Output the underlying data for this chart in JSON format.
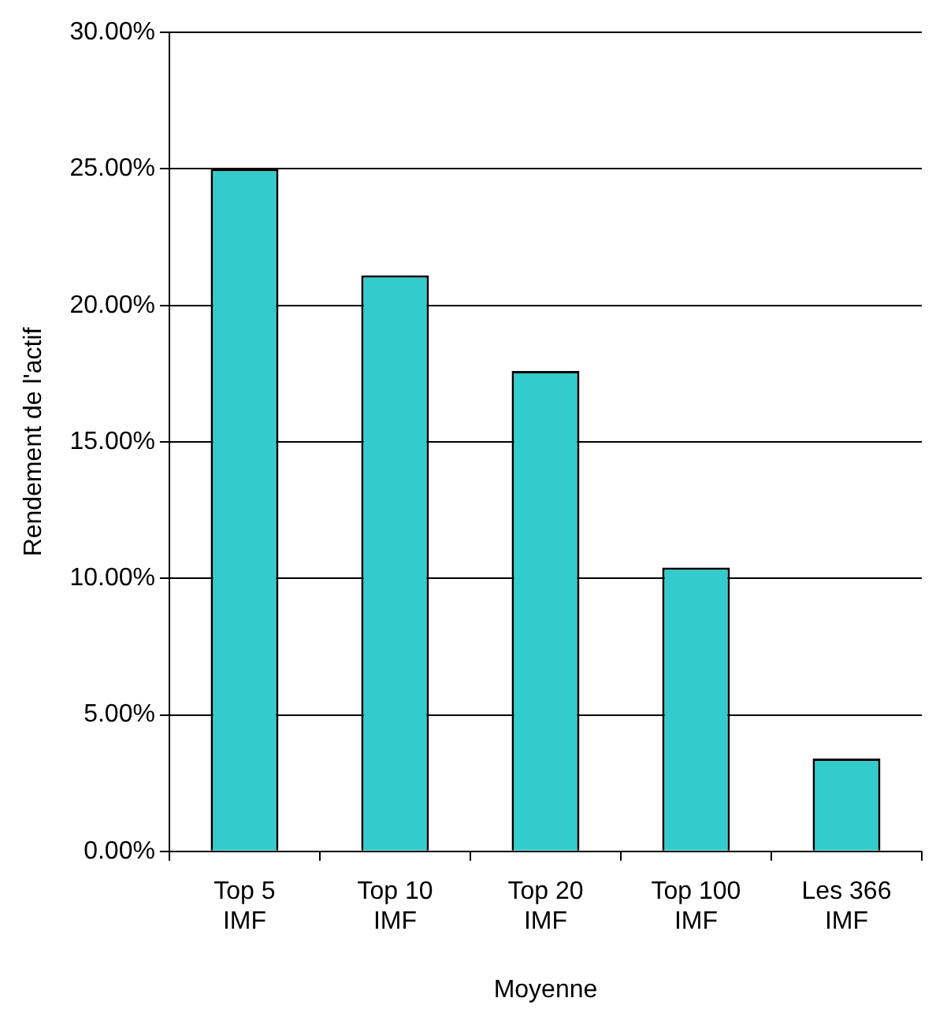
{
  "chart_data": {
    "type": "bar",
    "xlabel": "Moyenne",
    "ylabel": "Rendement de l'actif",
    "categories": [
      "Top 5 IMF",
      "Top 10 IMF",
      "Top 20 IMF",
      "Top 100 IMF",
      "Les 366 IMF"
    ],
    "values": [
      25.0,
      21.1,
      17.6,
      10.4,
      3.4
    ],
    "color": "#33cccc",
    "ylim": [
      0,
      30
    ],
    "yticks": [
      {
        "value": 0,
        "label": "0.00%"
      },
      {
        "value": 5,
        "label": "5.00%"
      },
      {
        "value": 10,
        "label": "10.00%"
      },
      {
        "value": 15,
        "label": "15.00%"
      },
      {
        "value": 20,
        "label": "20.00%"
      },
      {
        "value": 25,
        "label": "25.00%"
      },
      {
        "value": 30,
        "label": "30.00%"
      }
    ],
    "grid": "y",
    "legend": false
  }
}
